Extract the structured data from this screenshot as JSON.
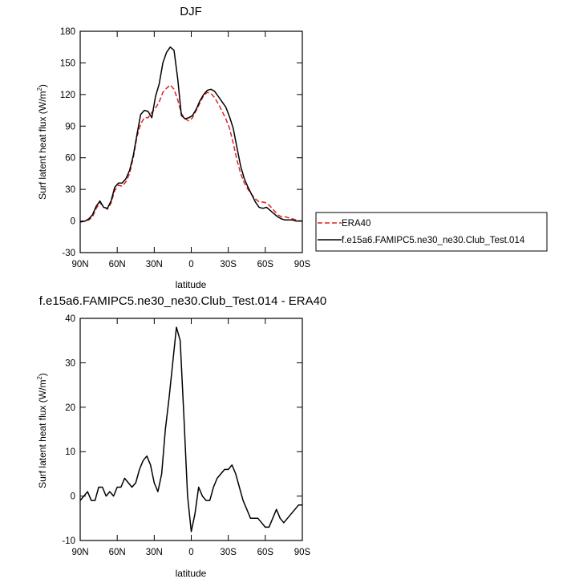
{
  "chart_data": [
    {
      "type": "line",
      "title": "DJF",
      "xlabel": "latitude",
      "ylabel_main": "Surf latent heat flux (W/m",
      "ylabel_sup": "2",
      "ylabel_close": ")",
      "xlim": [
        90,
        -90
      ],
      "ylim": [
        -30,
        180
      ],
      "xticks": [
        {
          "value": 90,
          "label": "90N"
        },
        {
          "value": 60,
          "label": "60N"
        },
        {
          "value": 30,
          "label": "30N"
        },
        {
          "value": 0,
          "label": "0"
        },
        {
          "value": -30,
          "label": "30S"
        },
        {
          "value": -60,
          "label": "60S"
        },
        {
          "value": -90,
          "label": "90S"
        }
      ],
      "yticks": [
        {
          "value": -30,
          "label": "-30"
        },
        {
          "value": 0,
          "label": "0"
        },
        {
          "value": 30,
          "label": "30"
        },
        {
          "value": 60,
          "label": "60"
        },
        {
          "value": 90,
          "label": "90"
        },
        {
          "value": 120,
          "label": "120"
        },
        {
          "value": 150,
          "label": "150"
        },
        {
          "value": 180,
          "label": "180"
        }
      ],
      "legend_position": "right",
      "series": [
        {
          "name": "ERA40",
          "color": "#dd2222",
          "dash": "dashed",
          "x": [
            90,
            86,
            83,
            80,
            77,
            74,
            71,
            68,
            65,
            62,
            59,
            56,
            53,
            50,
            47,
            44,
            41,
            38,
            35,
            32,
            29,
            26,
            23,
            20,
            17,
            14,
            11,
            8,
            5,
            2,
            -1,
            -4,
            -7,
            -10,
            -13,
            -16,
            -19,
            -22,
            -25,
            -28,
            -31,
            -34,
            -37,
            -40,
            -43,
            -46,
            -49,
            -52,
            -55,
            -58,
            -61,
            -64,
            -67,
            -70,
            -73,
            -76,
            -79,
            -82,
            -85,
            -88,
            -90
          ],
          "y": [
            -1,
            0,
            1,
            4,
            12,
            17,
            14,
            11,
            17,
            29,
            34,
            33,
            37,
            45,
            60,
            80,
            92,
            98,
            98,
            103,
            107,
            113,
            122,
            126,
            129,
            125,
            115,
            102,
            97,
            95,
            98,
            105,
            112,
            119,
            122,
            121,
            117,
            111,
            104,
            97,
            88,
            74,
            58,
            45,
            36,
            30,
            25,
            21,
            18,
            18,
            17,
            14,
            10,
            6,
            4,
            4,
            3,
            2,
            1,
            0,
            0
          ]
        },
        {
          "name": "f.e15a6.FAMIPC5.ne30_ne30.Club_Test.014",
          "color": "#000000",
          "dash": "solid",
          "x": [
            90,
            86,
            83,
            80,
            77,
            74,
            71,
            68,
            65,
            62,
            59,
            56,
            53,
            50,
            47,
            44,
            41,
            38,
            35,
            32,
            29,
            26,
            23,
            20,
            17,
            14,
            11,
            8,
            5,
            2,
            -1,
            -4,
            -7,
            -10,
            -13,
            -16,
            -19,
            -22,
            -25,
            -28,
            -31,
            -34,
            -37,
            -40,
            -43,
            -46,
            -49,
            -52,
            -55,
            -58,
            -61,
            -64,
            -67,
            -70,
            -73,
            -76,
            -79,
            -82,
            -85,
            -88,
            -90
          ],
          "y": [
            -1,
            0,
            2,
            6,
            14,
            19,
            13,
            12,
            19,
            32,
            36,
            36,
            40,
            48,
            62,
            82,
            101,
            105,
            104,
            98,
            118,
            130,
            150,
            160,
            165,
            162,
            135,
            100,
            97,
            98,
            100,
            106,
            114,
            120,
            124,
            125,
            123,
            118,
            113,
            108,
            99,
            88,
            70,
            52,
            40,
            32,
            25,
            18,
            13,
            12,
            13,
            10,
            7,
            4,
            2,
            1,
            1,
            1,
            0,
            0,
            0
          ]
        }
      ]
    },
    {
      "type": "line",
      "title": "f.e15a6.FAMIPC5.ne30_ne30.Club_Test.014 - ERA40",
      "xlabel": "latitude",
      "ylabel_main": "Surf latent heat flux (W/m",
      "ylabel_sup": "2",
      "ylabel_close": ")",
      "xlim": [
        90,
        -90
      ],
      "ylim": [
        -10,
        40
      ],
      "xticks": [
        {
          "value": 90,
          "label": "90N"
        },
        {
          "value": 60,
          "label": "60N"
        },
        {
          "value": 30,
          "label": "30N"
        },
        {
          "value": 0,
          "label": "0"
        },
        {
          "value": -30,
          "label": "30S"
        },
        {
          "value": -60,
          "label": "60S"
        },
        {
          "value": -90,
          "label": "90S"
        }
      ],
      "yticks": [
        {
          "value": -10,
          "label": "-10"
        },
        {
          "value": 0,
          "label": "0"
        },
        {
          "value": 10,
          "label": "10"
        },
        {
          "value": 20,
          "label": "20"
        },
        {
          "value": 30,
          "label": "30"
        },
        {
          "value": 40,
          "label": "40"
        }
      ],
      "series": [
        {
          "color": "#000000",
          "dash": "solid",
          "x": [
            90,
            87,
            84,
            81,
            78,
            75,
            72,
            69,
            66,
            63,
            60,
            57,
            54,
            51,
            48,
            45,
            42,
            39,
            36,
            33,
            30,
            27,
            24,
            21,
            18,
            15,
            12,
            9,
            6,
            3,
            0,
            -3,
            -6,
            -9,
            -12,
            -15,
            -18,
            -21,
            -24,
            -27,
            -30,
            -33,
            -36,
            -39,
            -42,
            -45,
            -48,
            -51,
            -54,
            -57,
            -60,
            -63,
            -66,
            -69,
            -72,
            -75,
            -78,
            -81,
            -84,
            -87,
            -90
          ],
          "y": [
            -1,
            0,
            1,
            -1,
            -1,
            2,
            2,
            0,
            1,
            0,
            2,
            2,
            4,
            3,
            2,
            3,
            6,
            8,
            9,
            7,
            3,
            1,
            5,
            15,
            22,
            30,
            38,
            35,
            18,
            0,
            -8,
            -4,
            2,
            0,
            -1,
            -1,
            2,
            4,
            5,
            6,
            6,
            7,
            5,
            2,
            -1,
            -3,
            -5,
            -5,
            -5,
            -6,
            -7,
            -7,
            -5,
            -3,
            -5,
            -6,
            -5,
            -4,
            -3,
            -2,
            -2
          ]
        }
      ]
    }
  ]
}
